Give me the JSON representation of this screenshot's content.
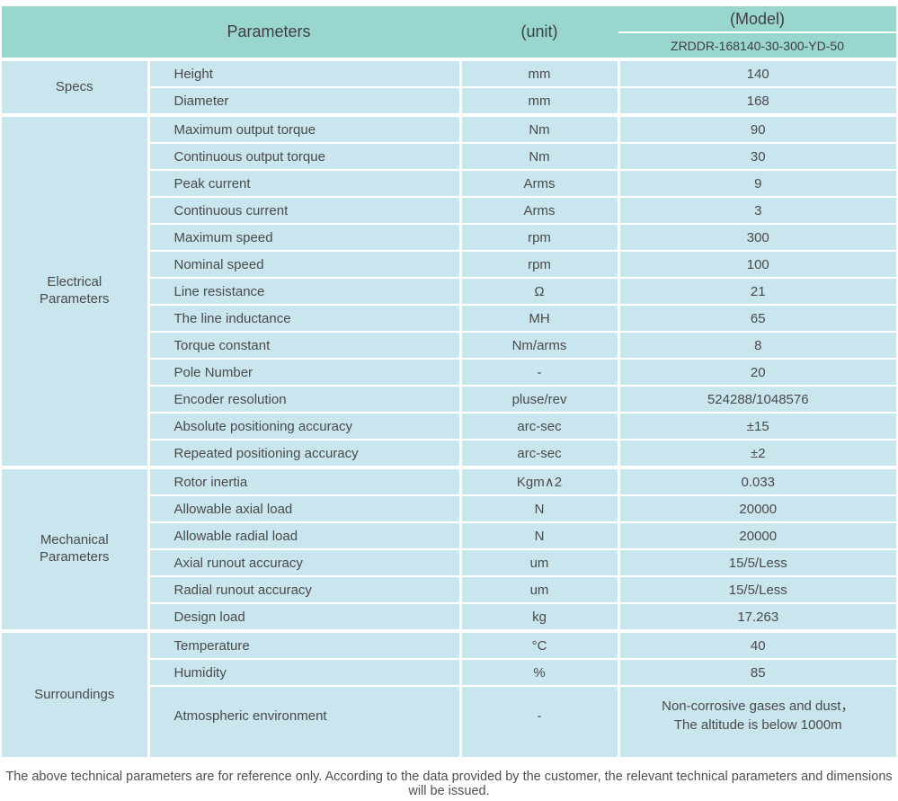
{
  "colors": {
    "header_bg": "#99d6cd",
    "row_bg": "#c9e6ee",
    "separator": "#ffffff",
    "text": "#4a4a4a"
  },
  "header": {
    "parameters_label": "Parameters",
    "unit_label": "(unit)",
    "model_label": "(Model)",
    "model_value": "ZRDDR-168140-30-300-YD-50"
  },
  "sections": [
    {
      "group": "Specs",
      "rows": [
        {
          "name": "Height",
          "unit": "mm",
          "value": "140"
        },
        {
          "name": "Diameter",
          "unit": "mm",
          "value": "168"
        }
      ]
    },
    {
      "group": "Electrical Parameters",
      "rows": [
        {
          "name": "Maximum output torque",
          "unit": "Nm",
          "value": "90"
        },
        {
          "name": "Continuous output torque",
          "unit": "Nm",
          "value": "30"
        },
        {
          "name": "Peak current",
          "unit": "Arms",
          "value": "9"
        },
        {
          "name": "Continuous current",
          "unit": "Arms",
          "value": "3"
        },
        {
          "name": "Maximum speed",
          "unit": "rpm",
          "value": "300"
        },
        {
          "name": "Nominal speed",
          "unit": "rpm",
          "value": "100"
        },
        {
          "name": "Line resistance",
          "unit": "Ω",
          "value": "21"
        },
        {
          "name": "The line inductance",
          "unit": "MH",
          "value": "65"
        },
        {
          "name": "Torque constant",
          "unit": "Nm/arms",
          "value": "8"
        },
        {
          "name": "Pole Number",
          "unit": "-",
          "value": "20"
        },
        {
          "name": "Encoder resolution",
          "unit": "pluse/rev",
          "value": "524288/1048576"
        },
        {
          "name": "Absolute positioning accuracy",
          "unit": "arc-sec",
          "value": "±15"
        },
        {
          "name": "Repeated positioning accuracy",
          "unit": "arc-sec",
          "value": "±2"
        }
      ]
    },
    {
      "group": "Mechanical Parameters",
      "rows": [
        {
          "name": "Rotor inertia",
          "unit": "Kgm∧2",
          "value": "0.033"
        },
        {
          "name": "Allowable axial load",
          "unit": "N",
          "value": "20000"
        },
        {
          "name": "Allowable radial load",
          "unit": "N",
          "value": "20000"
        },
        {
          "name": "Axial runout accuracy",
          "unit": "um",
          "value": "15/5/Less"
        },
        {
          "name": "Radial runout accuracy",
          "unit": "um",
          "value": "15/5/Less"
        },
        {
          "name": "Design load",
          "unit": "kg",
          "value": "17.263"
        }
      ]
    },
    {
      "group": "Surroundings",
      "rows": [
        {
          "name": "Temperature",
          "unit": "°C",
          "value": "40"
        },
        {
          "name": "Humidity",
          "unit": "%",
          "value": "85"
        },
        {
          "name": "Atmospheric environment",
          "unit": "-",
          "value": "Non-corrosive gases and dust，\nThe altitude is below 1000m",
          "tall": true
        }
      ]
    }
  ],
  "footer": {
    "note": "The above technical parameters are for reference only. According to the data provided by the customer, the relevant technical parameters and dimensions will be issued."
  }
}
